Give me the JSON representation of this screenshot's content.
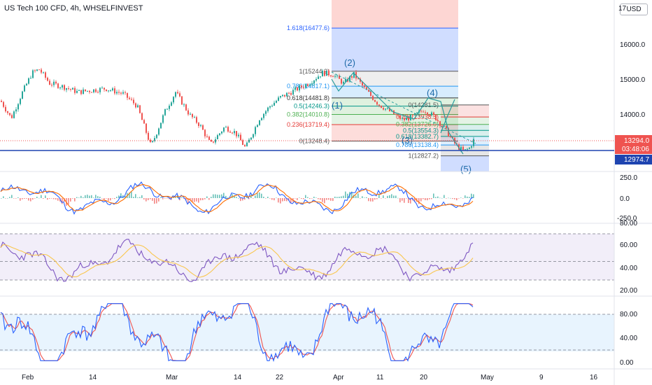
{
  "header": {
    "symbol_title": "US Tech 100 CFD, 4h, WHSELFINVEST"
  },
  "currency_button": {
    "label": "USD",
    "partial_label": "17"
  },
  "colors": {
    "up": "#26a69a",
    "down": "#ef5350",
    "accent": "#2962ff",
    "macd": "#2962ff",
    "signal": "#ff6d00",
    "rsi": "#7e57c2",
    "rsi_ma": "#f9c74f",
    "stoch_k": "#2962ff",
    "stoch_d": "#ef5350"
  },
  "time_axis": {
    "labels": [
      "Feb",
      "14",
      "Mar",
      "14",
      "22",
      "Apr",
      "11",
      "20",
      "May",
      "9",
      "16"
    ]
  },
  "price_axis": {
    "labels": [
      "16000.0",
      "15000.0",
      "14000.0"
    ]
  },
  "price_badges": {
    "last_price": "13294.0",
    "countdown": "03:48:06",
    "line_level": "12974.7"
  },
  "fib_upper": {
    "levels": [
      {
        "label": "1.618(16477.6)",
        "value": 16477.6
      },
      {
        "label": "1(15244.2)",
        "value": 15244.2
      },
      {
        "label": "0.786(14817.1)",
        "value": 14817.1
      },
      {
        "label": "0.618(14481.8)",
        "value": 14481.8
      },
      {
        "label": "0.5(14246.3)",
        "value": 14246.3
      },
      {
        "label": "0.382(14010.8)",
        "value": 14010.8
      },
      {
        "label": "0.236(13719.4)",
        "value": 13719.4
      },
      {
        "label": "0(13248.4)",
        "value": 13248.4
      }
    ]
  },
  "fib_lower": {
    "levels": [
      {
        "label": "0(14281.5)",
        "value": 14281.5
      },
      {
        "label": "0.236(13938.5)",
        "value": 13938.5
      },
      {
        "label": "0.382(13726.0)",
        "value": 13726.0
      },
      {
        "label": "0.5(13554.3)",
        "value": 13554.3
      },
      {
        "label": "0.618(13382.7)",
        "value": 13382.7
      },
      {
        "label": "0.786(13138.4)",
        "value": 13138.4
      },
      {
        "label": "1(12827.2)",
        "value": 12827.2
      }
    ]
  },
  "waves": {
    "labels": [
      "(1)",
      "(2)",
      "(3)",
      "(4)",
      "(5)"
    ]
  },
  "macd_axis": {
    "labels": [
      "250.0",
      "0.0",
      "-250.0"
    ]
  },
  "rsi_axis": {
    "labels": [
      "80.00",
      "60.00",
      "40.00",
      "20.00"
    ]
  },
  "stoch_axis": {
    "labels": [
      "80.00",
      "40.00",
      "0.00"
    ]
  }
}
